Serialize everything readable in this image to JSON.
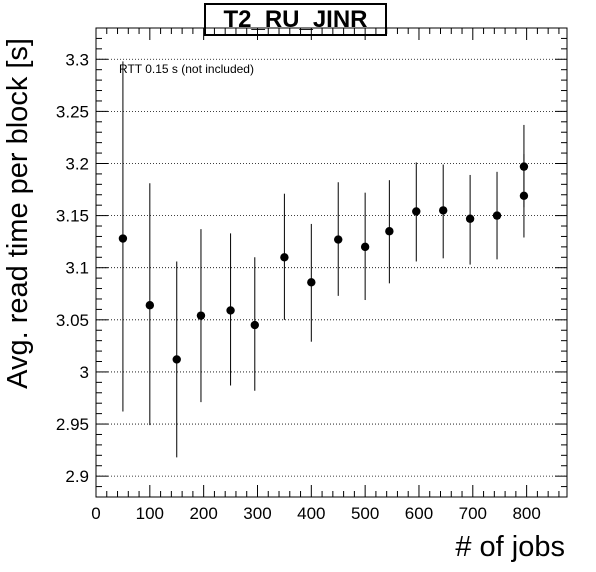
{
  "chart_data": {
    "type": "scatter",
    "title": "T2_RU_JINR",
    "xlabel": "# of jobs",
    "ylabel": "Avg. read time per block [s]",
    "xlim": [
      0,
      875
    ],
    "ylim": [
      2.88,
      3.33
    ],
    "xticks": [
      0,
      100,
      200,
      300,
      400,
      500,
      600,
      700,
      800
    ],
    "yticks": [
      2.9,
      2.95,
      3,
      3.05,
      3.1,
      3.15,
      3.2,
      3.25,
      3.3
    ],
    "ytick_labels": [
      "2.9",
      "2.95",
      "3",
      "3.05",
      "3.1",
      "3.15",
      "3.2",
      "3.25",
      "3.3"
    ],
    "grid": "horizontal-dotted",
    "annotation": "RTT 0.15 s (not included)",
    "points": [
      {
        "x": 50,
        "y": 3.128,
        "err_low": 2.962,
        "err_high": 3.298
      },
      {
        "x": 100,
        "y": 3.064,
        "err_low": 2.949,
        "err_high": 3.181
      },
      {
        "x": 150,
        "y": 3.012,
        "err_low": 2.918,
        "err_high": 3.106
      },
      {
        "x": 195,
        "y": 3.054,
        "err_low": 2.971,
        "err_high": 3.137
      },
      {
        "x": 250,
        "y": 3.059,
        "err_low": 2.987,
        "err_high": 3.133
      },
      {
        "x": 295,
        "y": 3.045,
        "err_low": 2.982,
        "err_high": 3.11
      },
      {
        "x": 350,
        "y": 3.11,
        "err_low": 3.05,
        "err_high": 3.171
      },
      {
        "x": 400,
        "y": 3.086,
        "err_low": 3.029,
        "err_high": 3.142
      },
      {
        "x": 450,
        "y": 3.127,
        "err_low": 3.073,
        "err_high": 3.182
      },
      {
        "x": 500,
        "y": 3.12,
        "err_low": 3.069,
        "err_high": 3.172
      },
      {
        "x": 545,
        "y": 3.135,
        "err_low": 3.085,
        "err_high": 3.184
      },
      {
        "x": 595,
        "y": 3.154,
        "err_low": 3.106,
        "err_high": 3.201
      },
      {
        "x": 645,
        "y": 3.155,
        "err_low": 3.109,
        "err_high": 3.199
      },
      {
        "x": 695,
        "y": 3.147,
        "err_low": 3.103,
        "err_high": 3.189
      },
      {
        "x": 745,
        "y": 3.15,
        "err_low": 3.108,
        "err_high": 3.192
      },
      {
        "x": 795,
        "y": 3.169,
        "err_low": 3.129,
        "err_high": 3.209
      },
      {
        "x": 795,
        "y": 3.197,
        "err_low": 3.158,
        "err_high": 3.237
      }
    ]
  }
}
